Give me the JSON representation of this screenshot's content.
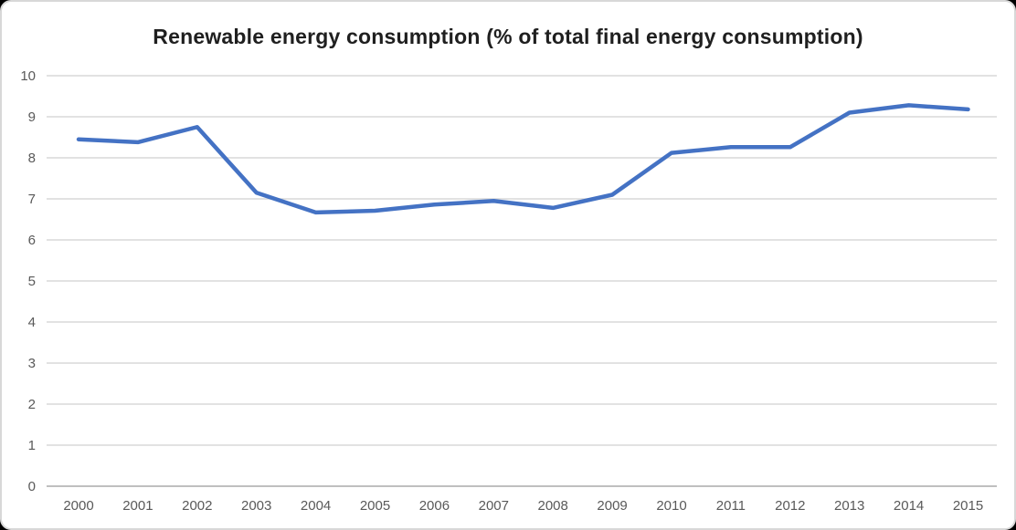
{
  "chart_data": {
    "type": "line",
    "title": "Renewable energy consumption (% of total final energy consumption)",
    "x": [
      2000,
      2001,
      2002,
      2003,
      2004,
      2005,
      2006,
      2007,
      2008,
      2009,
      2010,
      2011,
      2012,
      2013,
      2014,
      2015
    ],
    "values": [
      8.45,
      8.38,
      8.75,
      7.15,
      6.67,
      6.71,
      6.86,
      6.95,
      6.78,
      7.1,
      8.12,
      8.26,
      8.26,
      9.1,
      9.28,
      9.18
    ],
    "xlabel": "",
    "ylabel": "",
    "ylim": [
      0,
      10
    ],
    "ytick_interval": 1,
    "yticks": [
      "0",
      "1",
      "2",
      "3",
      "4",
      "5",
      "6",
      "7",
      "8",
      "9",
      "10"
    ],
    "grid": "horizontal",
    "legend": "none",
    "colors": {
      "line": "#4472C4",
      "gridline": "#d9d9d9",
      "axis_line": "#bfbfbf",
      "tick_label": "#595959",
      "title": "#1f1f1f",
      "plot_background": "#ffffff",
      "outer_background": "#000000"
    }
  }
}
